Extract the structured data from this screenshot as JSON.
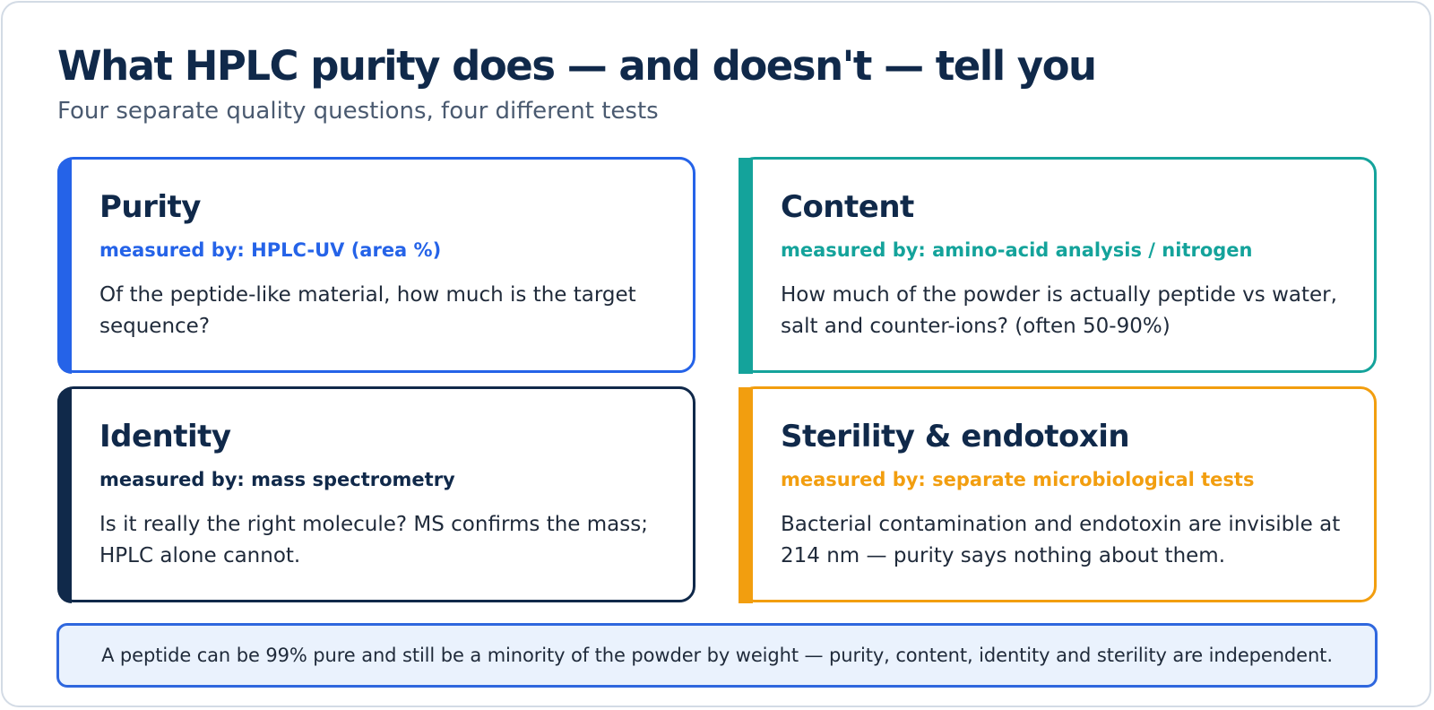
{
  "header": {
    "title": "What HPLC purity does — and doesn't — tell you",
    "subtitle": "Four separate quality questions, four different tests"
  },
  "cards": [
    {
      "title": "Purity",
      "method": "measured by: HPLC-UV (area %)",
      "description": "Of the peptide-like material, how much is the target sequence?",
      "accent": "#2563e8"
    },
    {
      "title": "Content",
      "method": "measured by: amino-acid analysis / nitrogen",
      "description": "How much of the powder is actually peptide vs water, salt and counter-ions? (often 50-90%)",
      "accent": "#14a39b"
    },
    {
      "title": "Identity",
      "method": "measured by: mass spectrometry",
      "description": "Is it really the right molecule? MS confirms the mass; HPLC alone cannot.",
      "accent": "#10294a"
    },
    {
      "title": "Sterility & endotoxin",
      "method": "measured by: separate microbiological tests",
      "description": "Bacterial contamination and endotoxin are invisible at 214 nm — purity says nothing about them.",
      "accent": "#f29e0f"
    }
  ],
  "footer_note": "A peptide can be 99% pure and still be a minority of the powder by weight — purity, content, identity and sterility are independent."
}
